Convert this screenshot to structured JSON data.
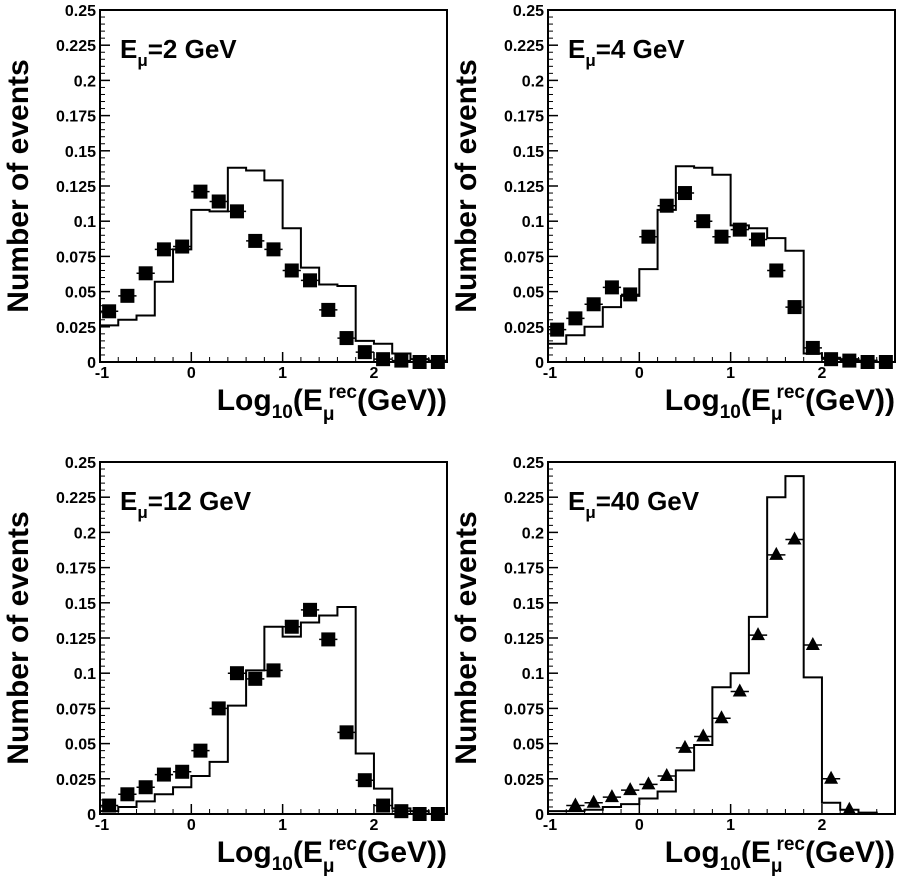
{
  "chart_data": [
    {
      "type": "scatter",
      "panel": "top-left",
      "annotation": {
        "main": "E",
        "sub": "μ",
        "value": "=2 GeV"
      },
      "ylabel": "Number of events",
      "xlabel": {
        "main": "Log",
        "sub": "10",
        "mid": "(E",
        "sub2": "μ",
        "sup": "rec",
        "end": "(GeV))"
      },
      "xlim": [
        -1,
        2.8
      ],
      "ylim": [
        0,
        0.25
      ],
      "xticks": [
        -1,
        0,
        1,
        2
      ],
      "xtick_labels": [
        "-1",
        "0",
        "1",
        "2"
      ],
      "yticks": [
        0,
        0.025,
        0.05,
        0.075,
        0.1,
        0.125,
        0.15,
        0.175,
        0.2,
        0.225,
        0.25
      ],
      "ytick_labels": [
        "0",
        "0.025",
        "0.05",
        "0.075",
        "0.1",
        "0.125",
        "0.15",
        "0.175",
        "0.2",
        "0.225",
        "0.25"
      ],
      "marker": "square",
      "bin_edges": [
        -1.0,
        -0.8,
        -0.6,
        -0.4,
        -0.2,
        0.0,
        0.2,
        0.4,
        0.6,
        0.8,
        1.0,
        1.2,
        1.4,
        1.6,
        1.8,
        2.0,
        2.2,
        2.4,
        2.6,
        2.8
      ],
      "histogram": [
        0.026,
        0.03,
        0.033,
        0.057,
        0.08,
        0.108,
        0.107,
        0.138,
        0.136,
        0.129,
        0.095,
        0.067,
        0.055,
        0.054,
        0.015,
        0.013,
        0.006,
        0.002,
        0.001
      ],
      "points": {
        "x": [
          -0.9,
          -0.7,
          -0.5,
          -0.3,
          -0.1,
          0.1,
          0.3,
          0.5,
          0.7,
          0.9,
          1.1,
          1.3,
          1.5,
          1.7,
          1.9,
          2.1,
          2.3,
          2.5,
          2.7
        ],
        "y": [
          0.036,
          0.047,
          0.063,
          0.08,
          0.082,
          0.121,
          0.114,
          0.107,
          0.086,
          0.08,
          0.065,
          0.058,
          0.037,
          0.017,
          0.007,
          0.002,
          0.001,
          0.0,
          0.0
        ]
      }
    },
    {
      "type": "scatter",
      "panel": "top-right",
      "annotation": {
        "main": "E",
        "sub": "μ",
        "value": "=4 GeV"
      },
      "ylabel": "Number of events",
      "xlabel": {
        "main": "Log",
        "sub": "10",
        "mid": "(E",
        "sub2": "μ",
        "sup": "rec",
        "end": "(GeV))"
      },
      "xlim": [
        -1,
        2.8
      ],
      "ylim": [
        0,
        0.25
      ],
      "xticks": [
        -1,
        0,
        1,
        2
      ],
      "xtick_labels": [
        "-1",
        "0",
        "1",
        "2"
      ],
      "yticks": [
        0,
        0.025,
        0.05,
        0.075,
        0.1,
        0.125,
        0.15,
        0.175,
        0.2,
        0.225,
        0.25
      ],
      "ytick_labels": [
        "0",
        "0.025",
        "0.05",
        "0.075",
        "0.1",
        "0.125",
        "0.15",
        "0.175",
        "0.2",
        "0.225",
        "0.25"
      ],
      "marker": "square",
      "bin_edges": [
        -1.0,
        -0.8,
        -0.6,
        -0.4,
        -0.2,
        0.0,
        0.2,
        0.4,
        0.6,
        0.8,
        1.0,
        1.2,
        1.4,
        1.6,
        1.8,
        2.0,
        2.2,
        2.4,
        2.6,
        2.8
      ],
      "histogram": [
        0.013,
        0.019,
        0.025,
        0.039,
        0.047,
        0.066,
        0.108,
        0.139,
        0.138,
        0.133,
        0.097,
        0.095,
        0.088,
        0.079,
        0.006,
        0.003,
        0.002,
        0.001,
        0.0
      ],
      "points": {
        "x": [
          -0.9,
          -0.7,
          -0.5,
          -0.3,
          -0.1,
          0.1,
          0.3,
          0.5,
          0.7,
          0.9,
          1.1,
          1.3,
          1.5,
          1.7,
          1.9,
          2.1,
          2.3,
          2.5,
          2.7
        ],
        "y": [
          0.023,
          0.031,
          0.041,
          0.053,
          0.048,
          0.089,
          0.111,
          0.12,
          0.1,
          0.089,
          0.094,
          0.087,
          0.065,
          0.039,
          0.01,
          0.002,
          0.001,
          0.0,
          0.0
        ]
      }
    },
    {
      "type": "scatter",
      "panel": "bottom-left",
      "annotation": {
        "main": "E",
        "sub": "μ",
        "value": "=12 GeV"
      },
      "ylabel": "Number of events",
      "xlabel": {
        "main": "Log",
        "sub": "10",
        "mid": "(E",
        "sub2": "μ",
        "sup": "rec",
        "end": "(GeV))"
      },
      "xlim": [
        -1,
        2.8
      ],
      "ylim": [
        0,
        0.25
      ],
      "xticks": [
        -1,
        0,
        1,
        2
      ],
      "xtick_labels": [
        "-1",
        "0",
        "1",
        "2"
      ],
      "yticks": [
        0,
        0.025,
        0.05,
        0.075,
        0.1,
        0.125,
        0.15,
        0.175,
        0.2,
        0.225,
        0.25
      ],
      "ytick_labels": [
        "0",
        "0.025",
        "0.05",
        "0.075",
        "0.1",
        "0.125",
        "0.15",
        "0.175",
        "0.2",
        "0.225",
        "0.25"
      ],
      "marker": "square",
      "bin_edges": [
        -1.0,
        -0.8,
        -0.6,
        -0.4,
        -0.2,
        0.0,
        0.2,
        0.4,
        0.6,
        0.8,
        1.0,
        1.2,
        1.4,
        1.6,
        1.8,
        2.0,
        2.2,
        2.4,
        2.6,
        2.8
      ],
      "histogram": [
        0.002,
        0.005,
        0.009,
        0.014,
        0.019,
        0.027,
        0.037,
        0.077,
        0.102,
        0.133,
        0.126,
        0.136,
        0.141,
        0.147,
        0.043,
        0.018,
        0.004,
        0.002,
        0.0
      ],
      "points": {
        "x": [
          -0.9,
          -0.7,
          -0.5,
          -0.3,
          -0.1,
          0.1,
          0.3,
          0.5,
          0.7,
          0.9,
          1.1,
          1.3,
          1.5,
          1.7,
          1.9,
          2.1,
          2.3,
          2.5,
          2.7
        ],
        "y": [
          0.006,
          0.014,
          0.019,
          0.028,
          0.03,
          0.045,
          0.075,
          0.1,
          0.096,
          0.102,
          0.133,
          0.145,
          0.124,
          0.058,
          0.024,
          0.006,
          0.002,
          0.0,
          0.0
        ]
      }
    },
    {
      "type": "scatter",
      "panel": "bottom-right",
      "annotation": {
        "main": "E",
        "sub": "μ",
        "value": "=40 GeV"
      },
      "ylabel": "Number of events",
      "xlabel": {
        "main": "Log",
        "sub": "10",
        "mid": "(E",
        "sub2": "μ",
        "sup": "rec",
        "end": "(GeV))"
      },
      "xlim": [
        -1,
        2.8
      ],
      "ylim": [
        0,
        0.25
      ],
      "xticks": [
        -1,
        0,
        1,
        2
      ],
      "xtick_labels": [
        "-1",
        "0",
        "1",
        "2"
      ],
      "yticks": [
        0,
        0.025,
        0.05,
        0.075,
        0.1,
        0.125,
        0.15,
        0.175,
        0.2,
        0.225,
        0.25
      ],
      "ytick_labels": [
        "0",
        "0.025",
        "0.05",
        "0.075",
        "0.1",
        "0.125",
        "0.15",
        "0.175",
        "0.2",
        "0.225",
        "0.25"
      ],
      "marker": "triangle",
      "bin_edges": [
        -1.0,
        -0.8,
        -0.6,
        -0.4,
        -0.2,
        0.0,
        0.2,
        0.4,
        0.6,
        0.8,
        1.0,
        1.2,
        1.4,
        1.6,
        1.8,
        2.0,
        2.2,
        2.4,
        2.6,
        2.8
      ],
      "histogram": [
        0.002,
        0.002,
        0.003,
        0.005,
        0.007,
        0.011,
        0.016,
        0.031,
        0.049,
        0.09,
        0.1,
        0.14,
        0.225,
        0.24,
        0.097,
        0.008,
        0.003,
        0.001,
        0.0
      ],
      "points": {
        "x": [
          -0.7,
          -0.5,
          -0.3,
          -0.1,
          0.1,
          0.3,
          0.5,
          0.7,
          0.9,
          1.1,
          1.3,
          1.5,
          1.7,
          1.9,
          2.1,
          2.3
        ],
        "y": [
          0.006,
          0.008,
          0.012,
          0.017,
          0.021,
          0.027,
          0.047,
          0.055,
          0.068,
          0.087,
          0.127,
          0.184,
          0.195,
          0.12,
          0.025,
          0.003
        ]
      }
    }
  ]
}
